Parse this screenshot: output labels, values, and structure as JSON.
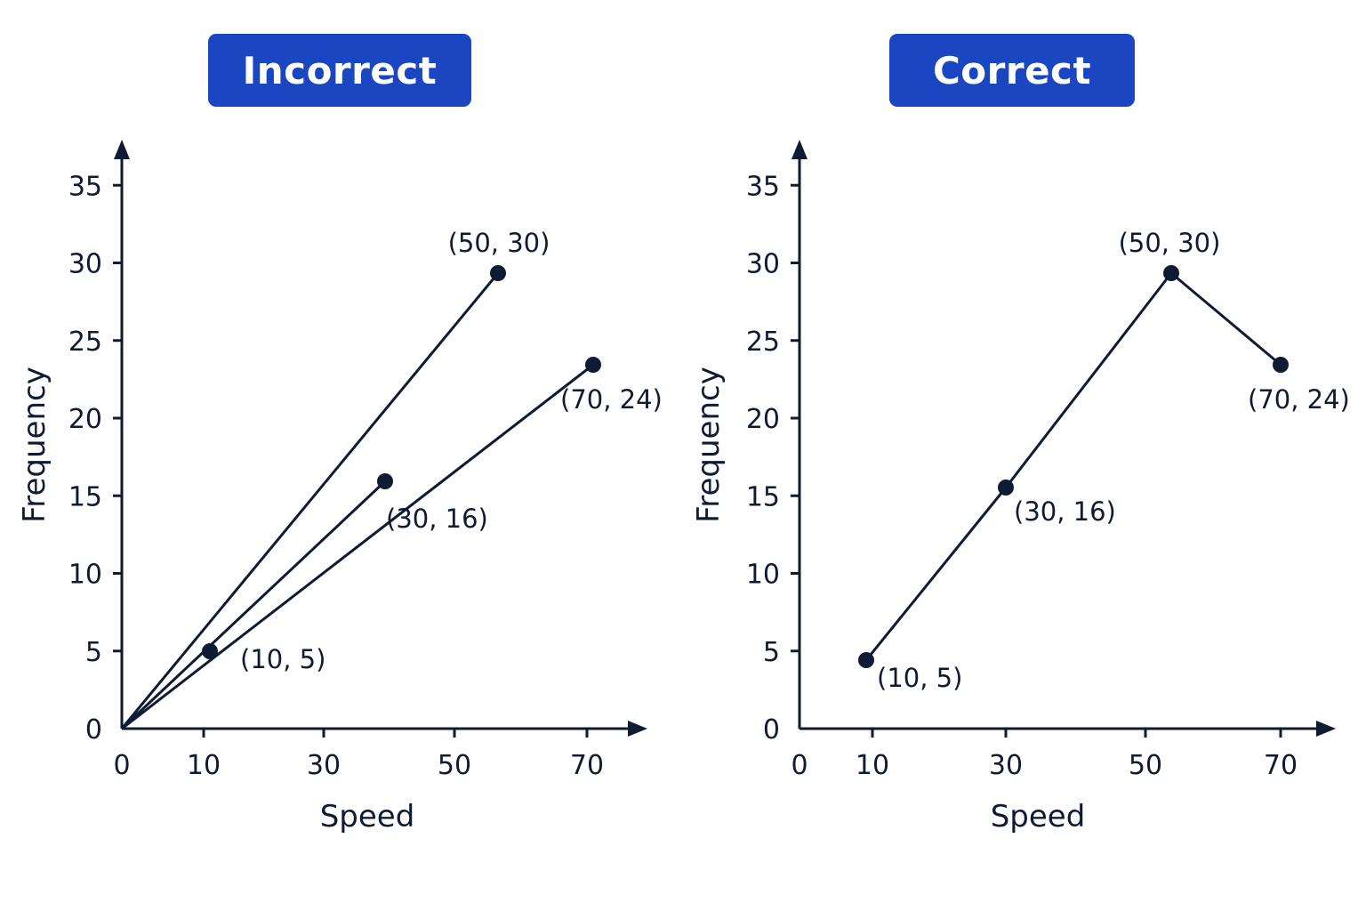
{
  "colors": {
    "badge": "#1a47c1",
    "ink": "#0f1a33",
    "badge_text": "#ffffff"
  },
  "chart_data": [
    {
      "type": "line",
      "title": "Incorrect",
      "xlabel": "Speed",
      "ylabel": "Frequency",
      "xticks": [
        0,
        10,
        30,
        50,
        70
      ],
      "yticks": [
        0,
        5,
        10,
        15,
        20,
        25,
        30,
        35
      ],
      "grid": false,
      "series": [
        {
          "x": [
            0,
            50
          ],
          "y": [
            0,
            30
          ]
        },
        {
          "x": [
            0,
            30
          ],
          "y": [
            0,
            16
          ]
        },
        {
          "x": [
            0,
            70
          ],
          "y": [
            0,
            24
          ]
        }
      ],
      "points": [
        {
          "x": 10,
          "y": 5,
          "label": "(10, 5)"
        },
        {
          "x": 30,
          "y": 16,
          "label": "(30, 16)"
        },
        {
          "x": 50,
          "y": 30,
          "label": "(50, 30)"
        },
        {
          "x": 70,
          "y": 24,
          "label": "(70, 24)"
        }
      ]
    },
    {
      "type": "line",
      "title": "Correct",
      "xlabel": "Speed",
      "ylabel": "Frequency",
      "xticks": [
        0,
        10,
        30,
        50,
        70
      ],
      "yticks": [
        0,
        5,
        10,
        15,
        20,
        25,
        30,
        35
      ],
      "grid": false,
      "series": [
        {
          "x": [
            10,
            30,
            50,
            70
          ],
          "y": [
            5,
            16,
            30,
            24
          ]
        }
      ],
      "points": [
        {
          "x": 10,
          "y": 5,
          "label": "(10, 5)"
        },
        {
          "x": 30,
          "y": 16,
          "label": "(30, 16)"
        },
        {
          "x": 50,
          "y": 30,
          "label": "(50, 30)"
        },
        {
          "x": 70,
          "y": 24,
          "label": "(70, 24)"
        }
      ]
    }
  ]
}
